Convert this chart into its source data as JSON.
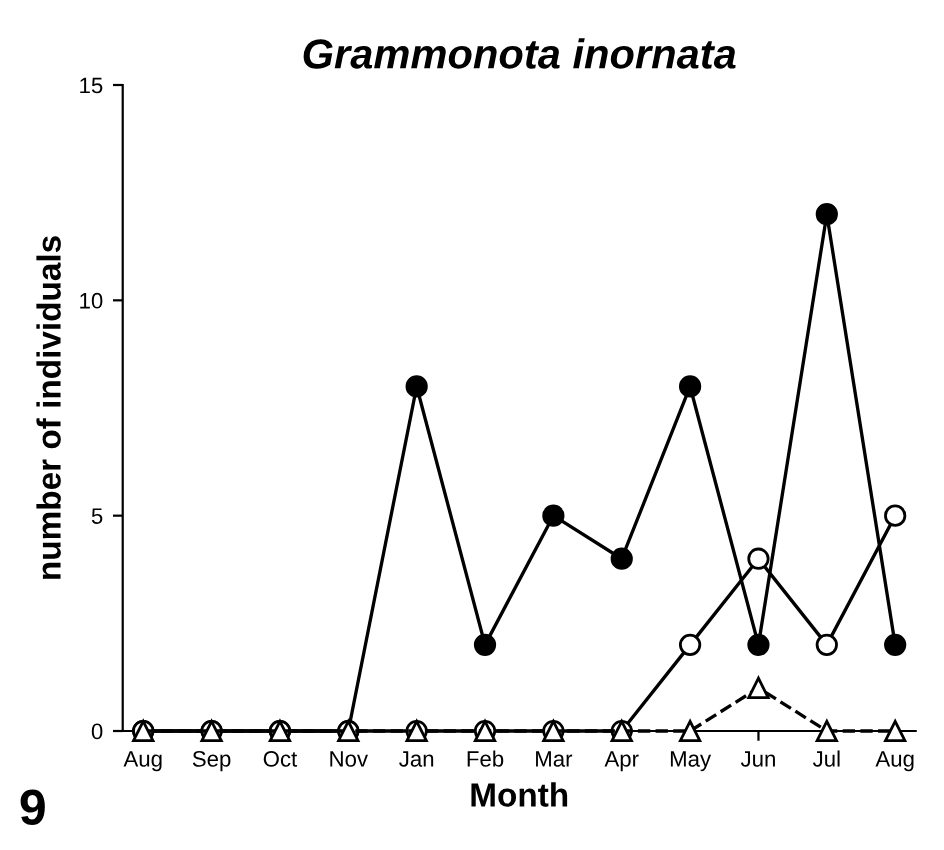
{
  "chart_data": {
    "type": "line",
    "title": "Grammonota inornata",
    "xlabel": "Month",
    "ylabel": "number of individuals",
    "categories": [
      "Aug",
      "Sep",
      "Oct",
      "Nov",
      "Jan",
      "Feb",
      "Mar",
      "Apr",
      "May",
      "Jun",
      "Jul",
      "Aug"
    ],
    "series": [
      {
        "color": "#000000",
        "marker": "circle",
        "line_style": "solid",
        "values": [
          0,
          0,
          0,
          0,
          8,
          2,
          5,
          4,
          8,
          2,
          12,
          2
        ]
      },
      {
        "color": "#000000",
        "marker": "circle",
        "line_style": "solid",
        "values": [
          0,
          0,
          0,
          0,
          0,
          0,
          0,
          0,
          2,
          4,
          2,
          5
        ]
      },
      {
        "color": "#000000",
        "marker": "triangle",
        "line_style": "dashed",
        "values": [
          0,
          0,
          0,
          0,
          0,
          0,
          0,
          0,
          0,
          1,
          0,
          0
        ]
      }
    ],
    "ylim": [
      0,
      15
    ],
    "yticks": [
      0,
      5,
      10,
      15
    ],
    "grid": false,
    "legend": false,
    "annotations": [
      "9"
    ]
  }
}
